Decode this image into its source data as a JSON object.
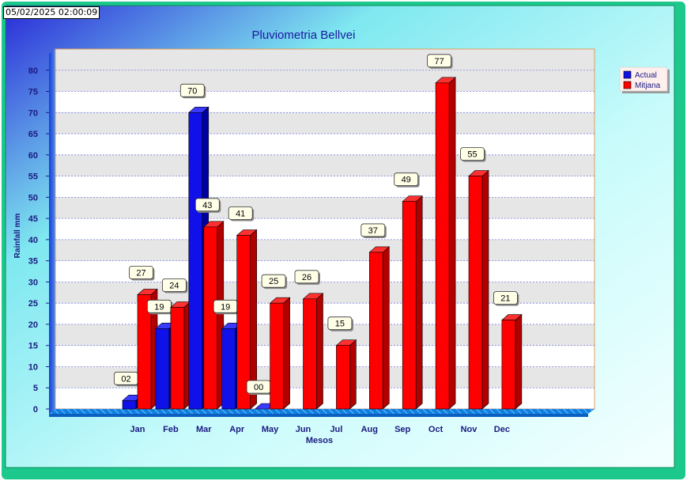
{
  "timestamp": "05/02/2025 02:00:09",
  "chart_data": {
    "type": "bar",
    "title": "Pluviometria Bellvei",
    "xlabel": "Mesos",
    "ylabel": "Rainfall mm",
    "ylim": [
      0,
      85
    ],
    "yticks": [
      0,
      5,
      10,
      15,
      20,
      25,
      30,
      35,
      40,
      45,
      50,
      55,
      60,
      65,
      70,
      75,
      80
    ],
    "categories": [
      "Jan",
      "Feb",
      "Mar",
      "Apr",
      "May",
      "Jun",
      "Jul",
      "Aug",
      "Sep",
      "Oct",
      "Nov",
      "Dec"
    ],
    "series": [
      {
        "name": "Actual",
        "color": "#1010e8",
        "values": [
          2,
          19,
          70,
          19,
          0,
          null,
          null,
          null,
          null,
          null,
          null,
          null
        ],
        "labels": [
          "02",
          "19",
          "70",
          "19",
          "00",
          "",
          "",
          "",
          "",
          "",
          "",
          ""
        ]
      },
      {
        "name": "Mitjana",
        "color": "#ff0000",
        "values": [
          27,
          24,
          43,
          41,
          25,
          26,
          15,
          37,
          49,
          77,
          55,
          21
        ],
        "labels": [
          "27",
          "24",
          "43",
          "41",
          "25",
          "26",
          "15",
          "37",
          "49",
          "77",
          "55",
          "21"
        ]
      }
    ],
    "legend_position": "top-right",
    "grid": true
  }
}
